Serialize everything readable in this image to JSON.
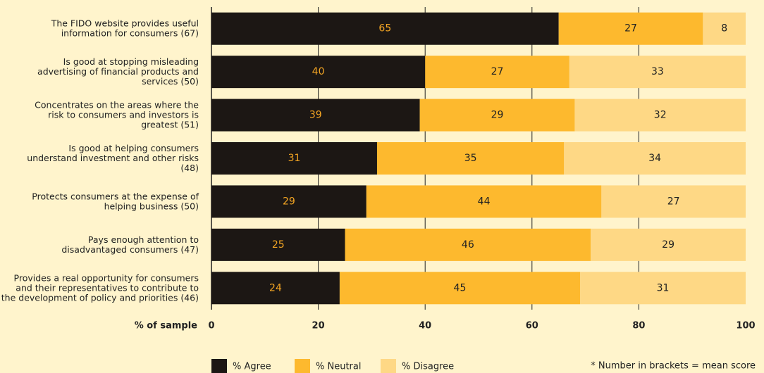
{
  "chart_data": {
    "type": "stacked-bar-horizontal",
    "categories": [
      "The FIDO website provides useful\ninformation for consumers (67)",
      "Is good at stopping misleading\nadvertising of financial products and\nservices (50)",
      "Concentrates on the areas where the\nrisk to consumers and investors is\ngreatest (51)",
      "Is good at helping consumers\nunderstand investment and other risks\n(48)",
      "Protects consumers at the expense of\nhelping business (50)",
      "Pays enough attention to\ndisadvantaged consumers (47)",
      "Provides a real opportunity for consumers\nand their representatives to contribute to\nthe development of policy and priorities (46)"
    ],
    "series": [
      {
        "name": "% Agree",
        "color": "#1c1714",
        "label_color": "#f5a623",
        "values": [
          65,
          40,
          39,
          31,
          29,
          25,
          24
        ]
      },
      {
        "name": "% Neutral",
        "color": "#fdb92e",
        "label_color": "#222222",
        "values": [
          27,
          27,
          29,
          35,
          44,
          46,
          45
        ]
      },
      {
        "name": "% Disagree",
        "color": "#fed885",
        "label_color": "#222222",
        "values": [
          8,
          33,
          32,
          34,
          27,
          29,
          31
        ]
      }
    ],
    "x_label": "% of sample",
    "xlim": [
      0,
      100
    ],
    "xticks": [
      0,
      20,
      40,
      60,
      80,
      100
    ],
    "grid": true,
    "legend": "bottom",
    "note": "* Number in brackets = mean score"
  }
}
